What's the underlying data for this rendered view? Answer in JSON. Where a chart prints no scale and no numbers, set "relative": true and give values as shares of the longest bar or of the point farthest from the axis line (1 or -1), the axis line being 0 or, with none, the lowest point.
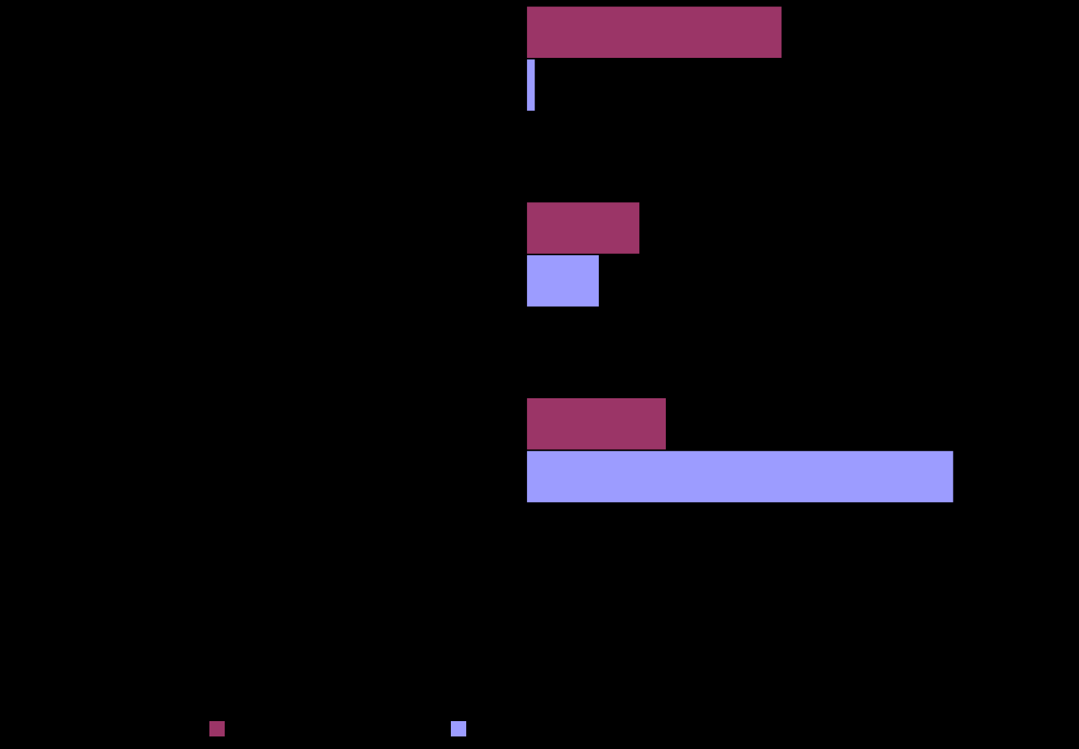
{
  "chart_data": {
    "type": "bar",
    "orientation": "horizontal",
    "relative": true,
    "categories": [
      null,
      null,
      null
    ],
    "series": [
      {
        "color": "#9b3567",
        "values": [
          0.598,
          0.265,
          0.327
        ]
      },
      {
        "color": "#9c9cff",
        "values": [
          0.02,
          0.17,
          1
        ]
      }
    ],
    "grid": false
  }
}
